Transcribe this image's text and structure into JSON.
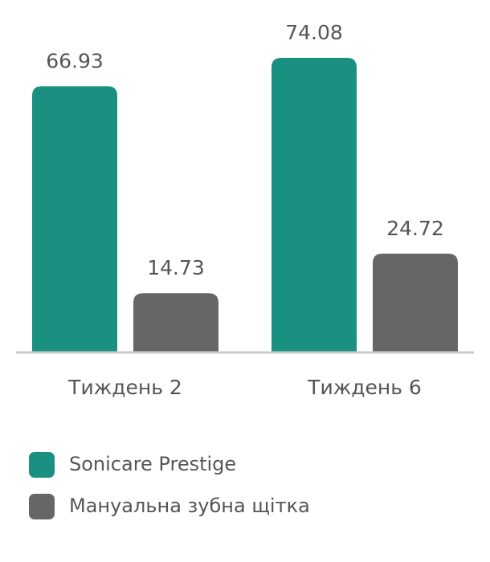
{
  "chart_data": {
    "type": "bar",
    "categories": [
      "Тиждень 2",
      "Тиждень 6"
    ],
    "series": [
      {
        "name": "Sonicare Prestige",
        "color": "#1a9080",
        "values": [
          66.93,
          74.08
        ]
      },
      {
        "name": "Мануальна зубна щітка",
        "color": "#666666",
        "values": [
          14.73,
          24.72
        ]
      }
    ]
  }
}
